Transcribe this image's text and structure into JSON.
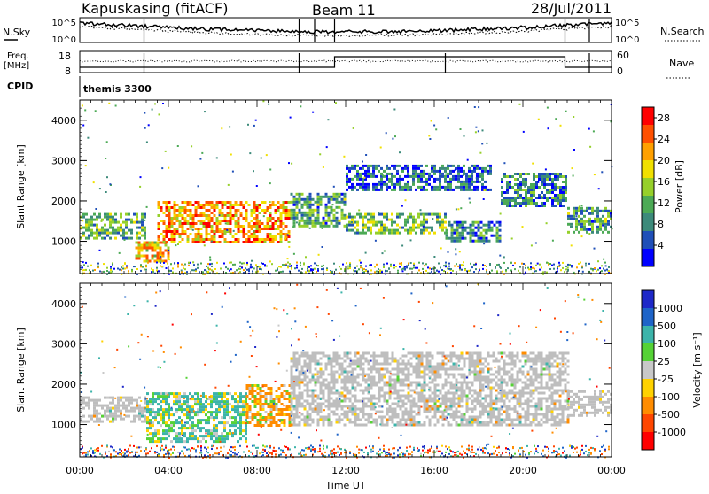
{
  "header": {
    "station": "Kapuskasing (fitACF)",
    "beam": "Beam 11",
    "date": "28/Jul/2011"
  },
  "noise_panel": {
    "left_label": "N.Sky",
    "right_label": "N.Search",
    "ticks_left": [
      "10^5",
      "10^0"
    ],
    "ticks_right": [
      "10^5",
      "10^0"
    ]
  },
  "freq_panel": {
    "left_label_line1": "Freq.",
    "left_label_line2": "[MHz]",
    "right_label": "Nave",
    "ticks_left": [
      "18",
      "8"
    ],
    "ticks_right": [
      "60",
      "0"
    ]
  },
  "cpid": {
    "label": "CPID",
    "value": "themis 3300"
  },
  "colors": {
    "power_scale": [
      "#0000ff",
      "#1f4fb8",
      "#3c8a7a",
      "#4caa55",
      "#96d02a",
      "#f0e000",
      "#ffa000",
      "#ff5000",
      "#ff0000"
    ],
    "velocity_scale": [
      "#1e28c8",
      "#1e64c8",
      "#3cb4aa",
      "#55d236",
      "#c8c8c8",
      "#ffd200",
      "#ff8c00",
      "#ff4600",
      "#ff0000"
    ],
    "ground_scatter": "#bebebe"
  },
  "chart_data": [
    {
      "type": "heatmap",
      "name": "power",
      "ylabel": "Slant Range [km]",
      "ylim": [
        200,
        4500
      ],
      "yticks": [
        "1000",
        "2000",
        "3000",
        "4000"
      ],
      "xlim_hours": [
        0,
        24
      ],
      "xticks": [
        "00:00",
        "04:00",
        "08:00",
        "12:00",
        "16:00",
        "20:00",
        "00:00"
      ],
      "colorbar": {
        "label": "Power [dB]",
        "range": [
          0,
          30
        ],
        "ticks": [
          "4",
          "8",
          "12",
          "16",
          "20",
          "24",
          "28"
        ]
      },
      "features": [
        {
          "t0": 0.0,
          "t1": 3.0,
          "r0": 1050,
          "r1": 1700,
          "value": 12
        },
        {
          "t0": 2.5,
          "t1": 4.0,
          "r0": 500,
          "r1": 1000,
          "value": 20
        },
        {
          "t0": 3.5,
          "t1": 9.5,
          "r0": 1000,
          "r1": 2000,
          "value": 22
        },
        {
          "t0": 9.5,
          "t1": 12.0,
          "r0": 1400,
          "r1": 2200,
          "value": 10
        },
        {
          "t0": 12.0,
          "t1": 16.5,
          "r0": 1200,
          "r1": 1700,
          "value": 12
        },
        {
          "t0": 16.5,
          "t1": 19.0,
          "r0": 1000,
          "r1": 1500,
          "value": 8
        },
        {
          "t0": 12.0,
          "t1": 18.5,
          "r0": 2300,
          "r1": 2900,
          "value": 6
        },
        {
          "t0": 19.0,
          "t1": 22.0,
          "r0": 1900,
          "r1": 2700,
          "value": 8
        },
        {
          "t0": 22.0,
          "t1": 24.0,
          "r0": 1250,
          "r1": 1850,
          "value": 10
        }
      ]
    },
    {
      "type": "heatmap",
      "name": "velocity",
      "ylabel": "Slant Range [km]",
      "xlabel": "Time UT",
      "ylim": [
        200,
        4500
      ],
      "yticks": [
        "1000",
        "2000",
        "3000",
        "4000"
      ],
      "xlim_hours": [
        0,
        24
      ],
      "xticks": [
        "00:00",
        "04:00",
        "08:00",
        "12:00",
        "16:00",
        "20:00",
        "00:00"
      ],
      "colorbar": {
        "label": "Velocity [m s⁻¹]",
        "range": [
          -1200,
          1200
        ],
        "ticks": [
          "1000",
          "500",
          "100",
          "25",
          "-25",
          "-100",
          "-500",
          "-1000"
        ]
      },
      "features": [
        {
          "t0": 0.0,
          "t1": 3.0,
          "r0": 1050,
          "r1": 1700,
          "value": 0,
          "ground_scatter": true
        },
        {
          "t0": 3.0,
          "t1": 7.5,
          "r0": 600,
          "r1": 1800,
          "value": 150
        },
        {
          "t0": 7.5,
          "t1": 9.5,
          "r0": 1000,
          "r1": 2000,
          "value": -150
        },
        {
          "t0": 9.5,
          "t1": 22.0,
          "r0": 1000,
          "r1": 2800,
          "value": 0,
          "ground_scatter": true
        },
        {
          "t0": 22.0,
          "t1": 24.0,
          "r0": 1250,
          "r1": 1850,
          "value": 0,
          "ground_scatter": true
        }
      ]
    }
  ]
}
